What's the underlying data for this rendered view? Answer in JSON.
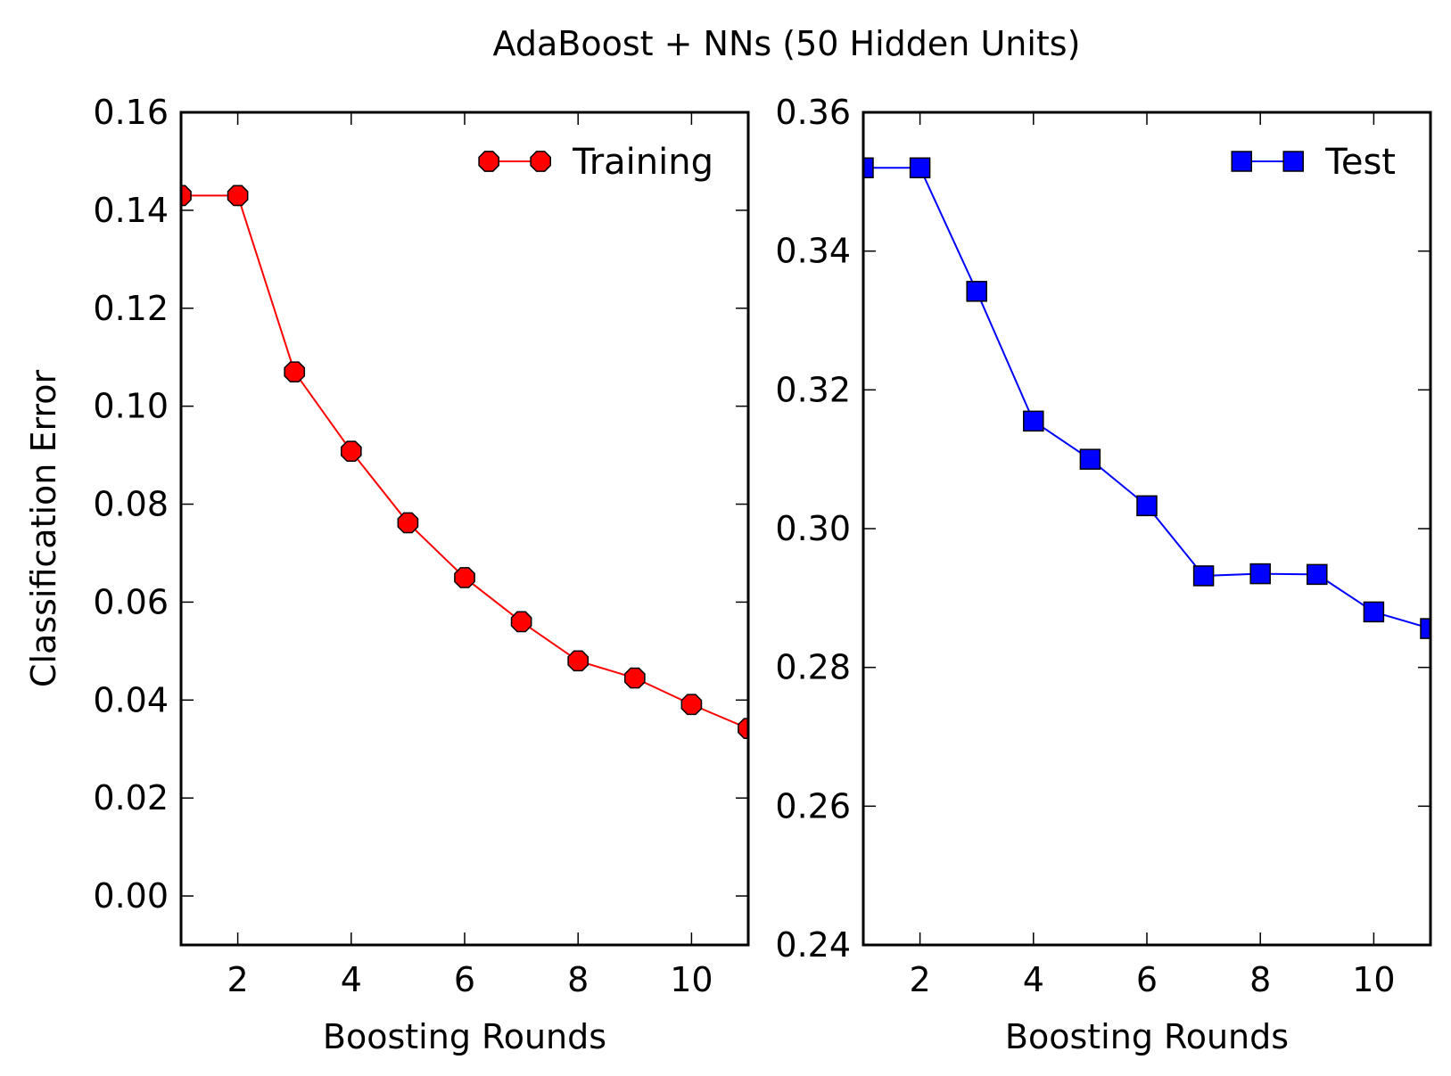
{
  "figure": {
    "title": "AdaBoost + NNs (50 Hidden Units)"
  },
  "chart_data": [
    {
      "type": "line",
      "xlabel": "Boosting Rounds",
      "ylabel": "Classification Error",
      "xlim": [
        1,
        11
      ],
      "ylim": [
        -0.01,
        0.16
      ],
      "xticks": [
        2,
        4,
        6,
        8,
        10
      ],
      "xtick_labels": [
        "2",
        "4",
        "6",
        "8",
        "10"
      ],
      "yticks": [
        0.0,
        0.02,
        0.04,
        0.06,
        0.08,
        0.1,
        0.12,
        0.14,
        0.16
      ],
      "ytick_labels": [
        "0.00",
        "0.02",
        "0.04",
        "0.06",
        "0.08",
        "0.10",
        "0.12",
        "0.14",
        "0.16"
      ],
      "legend_position": "top-right",
      "grid": false,
      "series": [
        {
          "name": "Training",
          "color": "#ff0000",
          "marker": "octagon",
          "x": [
            1,
            2,
            3,
            4,
            5,
            6,
            7,
            8,
            9,
            10,
            11
          ],
          "values": [
            0.143,
            0.143,
            0.107,
            0.0908,
            0.0762,
            0.065,
            0.056,
            0.048,
            0.0445,
            0.0391,
            0.0342
          ]
        }
      ]
    },
    {
      "type": "line",
      "xlabel": "Boosting Rounds",
      "ylabel": "",
      "xlim": [
        1,
        11
      ],
      "ylim": [
        0.24,
        0.36
      ],
      "xticks": [
        2,
        4,
        6,
        8,
        10
      ],
      "xtick_labels": [
        "2",
        "4",
        "6",
        "8",
        "10"
      ],
      "yticks": [
        0.24,
        0.26,
        0.28,
        0.3,
        0.32,
        0.34,
        0.36
      ],
      "ytick_labels": [
        "0.24",
        "0.26",
        "0.28",
        "0.30",
        "0.32",
        "0.34",
        "0.36"
      ],
      "legend_position": "top-right",
      "grid": false,
      "series": [
        {
          "name": "Test",
          "color": "#0000ff",
          "marker": "square",
          "x": [
            1,
            2,
            3,
            4,
            5,
            6,
            7,
            8,
            9,
            10,
            11
          ],
          "values": [
            0.352,
            0.352,
            0.3342,
            0.3155,
            0.31,
            0.3033,
            0.2932,
            0.2935,
            0.2934,
            0.288,
            0.2856
          ]
        }
      ]
    }
  ]
}
